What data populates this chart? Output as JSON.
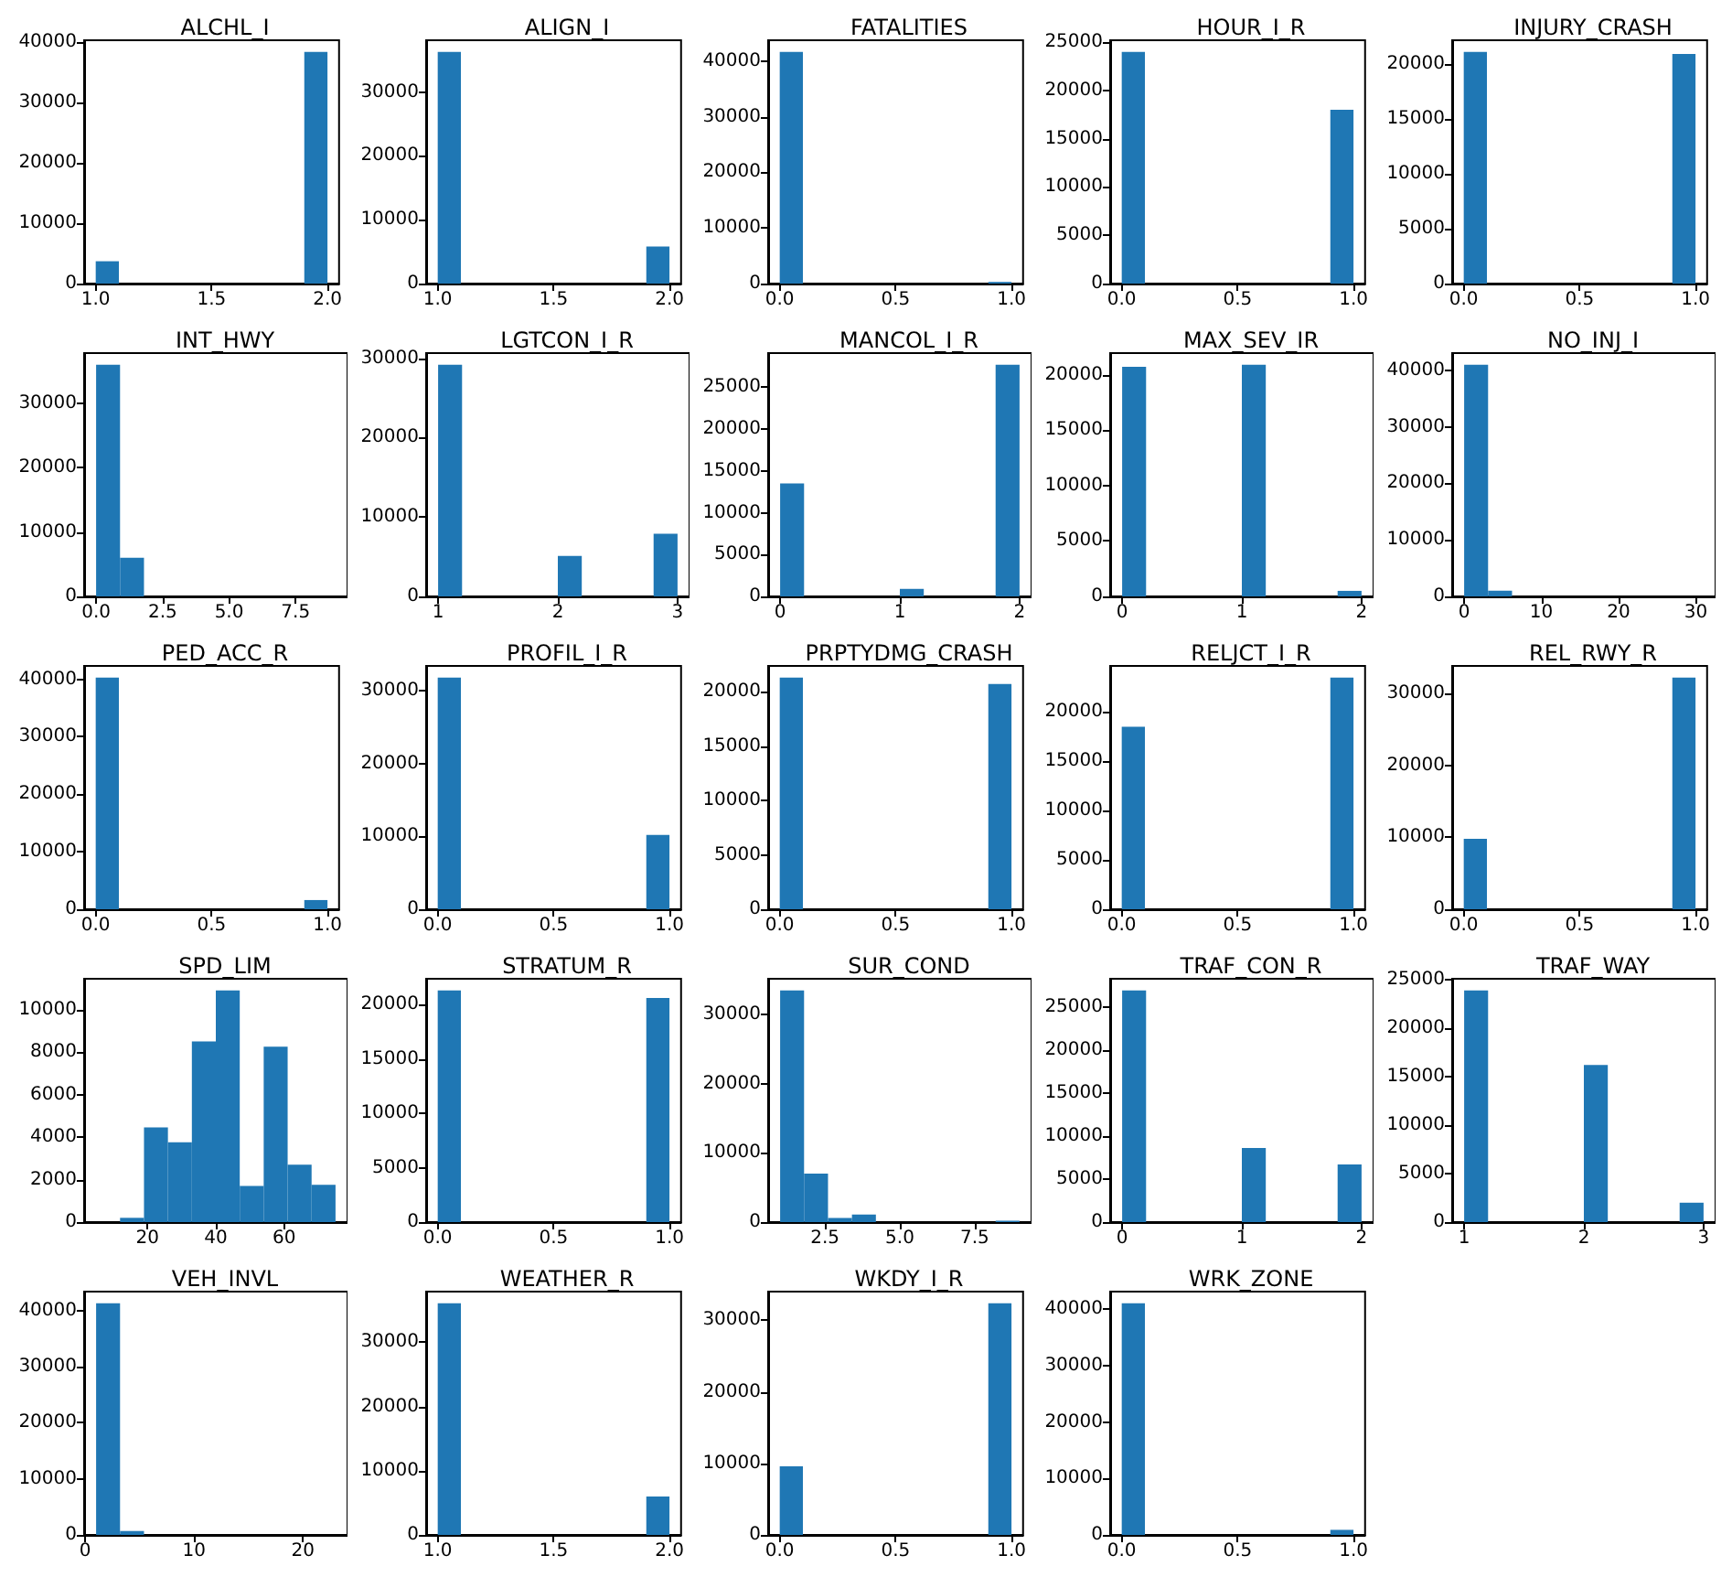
{
  "chart_data": [
    {
      "type": "histogram",
      "title": "ALCHL_I",
      "color": "#1f77b4",
      "bins": [
        1,
        1.1,
        1.2,
        1.3,
        1.4,
        1.5,
        1.6,
        1.7,
        1.8,
        1.9,
        2
      ],
      "values": [
        3700,
        0,
        0,
        0,
        0,
        0,
        0,
        0,
        0,
        38400
      ],
      "xlim": [
        0.95,
        2.05
      ],
      "xticks": [
        {
          "value": 1,
          "label": "1.0"
        },
        {
          "value": 1.5,
          "label": "1.5"
        },
        {
          "value": 2,
          "label": "2.0"
        }
      ],
      "ylim": [
        0,
        40320
      ],
      "yticks": [
        0,
        10000,
        20000,
        30000,
        40000
      ]
    },
    {
      "type": "histogram",
      "title": "ALIGN_I",
      "color": "#1f77b4",
      "bins": [
        1,
        1.1,
        1.2,
        1.3,
        1.4,
        1.5,
        1.6,
        1.7,
        1.8,
        1.9,
        2
      ],
      "values": [
        36300,
        0,
        0,
        0,
        0,
        0,
        0,
        0,
        0,
        5800
      ],
      "xlim": [
        0.95,
        2.05
      ],
      "xticks": [
        {
          "value": 1,
          "label": "1.0"
        },
        {
          "value": 1.5,
          "label": "1.5"
        },
        {
          "value": 2,
          "label": "2.0"
        }
      ],
      "ylim": [
        0,
        38115
      ],
      "yticks": [
        0,
        10000,
        20000,
        30000
      ]
    },
    {
      "type": "histogram",
      "title": "FATALITIES",
      "color": "#1f77b4",
      "bins": [
        0,
        0.1,
        0.2,
        0.3,
        0.4,
        0.5,
        0.6,
        0.7,
        0.8,
        0.9,
        1
      ],
      "values": [
        41700,
        0,
        0,
        0,
        0,
        0,
        0,
        0,
        0,
        300
      ],
      "xlim": [
        -0.05,
        1.05
      ],
      "xticks": [
        {
          "value": 0,
          "label": "0.0"
        },
        {
          "value": 0.5,
          "label": "0.5"
        },
        {
          "value": 1,
          "label": "1.0"
        }
      ],
      "ylim": [
        0,
        43785
      ],
      "yticks": [
        0,
        10000,
        20000,
        30000,
        40000
      ]
    },
    {
      "type": "histogram",
      "title": "HOUR_I_R",
      "color": "#1f77b4",
      "bins": [
        0,
        0.1,
        0.2,
        0.3,
        0.4,
        0.5,
        0.6,
        0.7,
        0.8,
        0.9,
        1
      ],
      "values": [
        24000,
        0,
        0,
        0,
        0,
        0,
        0,
        0,
        0,
        18000
      ],
      "xlim": [
        -0.05,
        1.05
      ],
      "xticks": [
        {
          "value": 0,
          "label": "0.0"
        },
        {
          "value": 0.5,
          "label": "0.5"
        },
        {
          "value": 1,
          "label": "1.0"
        }
      ],
      "ylim": [
        0,
        25200
      ],
      "yticks": [
        0,
        5000,
        10000,
        15000,
        20000,
        25000
      ]
    },
    {
      "type": "histogram",
      "title": "INJURY_CRASH",
      "color": "#1f77b4",
      "bins": [
        0,
        0.1,
        0.2,
        0.3,
        0.4,
        0.5,
        0.6,
        0.7,
        0.8,
        0.9,
        1
      ],
      "values": [
        21100,
        0,
        0,
        0,
        0,
        0,
        0,
        0,
        0,
        20900
      ],
      "xlim": [
        -0.05,
        1.05
      ],
      "xticks": [
        {
          "value": 0,
          "label": "0.0"
        },
        {
          "value": 0.5,
          "label": "0.5"
        },
        {
          "value": 1,
          "label": "1.0"
        }
      ],
      "ylim": [
        0,
        22155
      ],
      "yticks": [
        0,
        5000,
        10000,
        15000,
        20000
      ]
    },
    {
      "type": "histogram",
      "title": "INT_HWY",
      "color": "#1f77b4",
      "bins": [
        0,
        0.9,
        1.8,
        2.7,
        3.6,
        4.5,
        5.4,
        6.3,
        7.2,
        8.1,
        9
      ],
      "values": [
        36000,
        6000,
        0,
        0,
        0,
        0,
        0,
        0,
        0,
        0
      ],
      "xlim": [
        -0.45,
        9.45
      ],
      "xticks": [
        {
          "value": 0,
          "label": "0.0"
        },
        {
          "value": 2.5,
          "label": "2.5"
        },
        {
          "value": 5,
          "label": "5.0"
        },
        {
          "value": 7.5,
          "label": "7.5"
        }
      ],
      "ylim": [
        0,
        37800
      ],
      "yticks": [
        0,
        10000,
        20000,
        30000
      ]
    },
    {
      "type": "histogram",
      "title": "LGTCON_I_R",
      "color": "#1f77b4",
      "bins": [
        1,
        1.2,
        1.4,
        1.6,
        1.8,
        2,
        2.2,
        2.4,
        2.6,
        2.8,
        3
      ],
      "values": [
        29200,
        0,
        0,
        0,
        0,
        5100,
        0,
        0,
        0,
        7900
      ],
      "xlim": [
        0.9,
        3.1
      ],
      "xticks": [
        1,
        2,
        3
      ],
      "ylim": [
        0,
        30660
      ],
      "yticks": [
        0,
        10000,
        20000,
        30000
      ]
    },
    {
      "type": "histogram",
      "title": "MANCOL_I_R",
      "color": "#1f77b4",
      "bins": [
        0,
        0.2,
        0.4,
        0.6,
        0.8,
        1,
        1.2,
        1.4,
        1.6,
        1.8,
        2
      ],
      "values": [
        13500,
        0,
        0,
        0,
        0,
        900,
        0,
        0,
        0,
        27700
      ],
      "xlim": [
        -0.1,
        2.1
      ],
      "xticks": [
        0,
        1,
        2
      ],
      "ylim": [
        0,
        29085
      ],
      "yticks": [
        0,
        5000,
        10000,
        15000,
        20000,
        25000
      ]
    },
    {
      "type": "histogram",
      "title": "MAX_SEV_IR",
      "color": "#1f77b4",
      "bins": [
        0,
        0.2,
        0.4,
        0.6,
        0.8,
        1,
        1.2,
        1.4,
        1.6,
        1.8,
        2
      ],
      "values": [
        20700,
        0,
        0,
        0,
        0,
        20900,
        0,
        0,
        0,
        500
      ],
      "xlim": [
        -0.1,
        2.1
      ],
      "xticks": [
        0,
        1,
        2
      ],
      "ylim": [
        0,
        21945
      ],
      "yticks": [
        0,
        5000,
        10000,
        15000,
        20000
      ]
    },
    {
      "type": "histogram",
      "title": "NO_INJ_I",
      "color": "#1f77b4",
      "bins": [
        0,
        3.1,
        6.2,
        9.3,
        12.4,
        15.5,
        18.6,
        21.7,
        24.8,
        27.9,
        31
      ],
      "values": [
        41000,
        1000,
        0,
        0,
        0,
        0,
        0,
        0,
        0,
        0
      ],
      "xlim": [
        -1.55,
        32.55
      ],
      "xticks": [
        0,
        10,
        20,
        30
      ],
      "ylim": [
        0,
        43050
      ],
      "yticks": [
        0,
        10000,
        20000,
        30000,
        40000
      ]
    },
    {
      "type": "histogram",
      "title": "PED_ACC_R",
      "color": "#1f77b4",
      "bins": [
        0,
        0.1,
        0.2,
        0.3,
        0.4,
        0.5,
        0.6,
        0.7,
        0.8,
        0.9,
        1
      ],
      "values": [
        40300,
        0,
        0,
        0,
        0,
        0,
        0,
        0,
        0,
        1600
      ],
      "xlim": [
        -0.05,
        1.05
      ],
      "xticks": [
        {
          "value": 0,
          "label": "0.0"
        },
        {
          "value": 0.5,
          "label": "0.5"
        },
        {
          "value": 1,
          "label": "1.0"
        }
      ],
      "ylim": [
        0,
        42315
      ],
      "yticks": [
        0,
        10000,
        20000,
        30000,
        40000
      ]
    },
    {
      "type": "histogram",
      "title": "PROFIL_I_R",
      "color": "#1f77b4",
      "bins": [
        0,
        0.1,
        0.2,
        0.3,
        0.4,
        0.5,
        0.6,
        0.7,
        0.8,
        0.9,
        1
      ],
      "values": [
        31800,
        0,
        0,
        0,
        0,
        0,
        0,
        0,
        0,
        10200
      ],
      "xlim": [
        -0.05,
        1.05
      ],
      "xticks": [
        {
          "value": 0,
          "label": "0.0"
        },
        {
          "value": 0.5,
          "label": "0.5"
        },
        {
          "value": 1,
          "label": "1.0"
        }
      ],
      "ylim": [
        0,
        33390
      ],
      "yticks": [
        0,
        10000,
        20000,
        30000
      ]
    },
    {
      "type": "histogram",
      "title": "PRPTYDMG_CRASH",
      "color": "#1f77b4",
      "bins": [
        0,
        0.1,
        0.2,
        0.3,
        0.4,
        0.5,
        0.6,
        0.7,
        0.8,
        0.9,
        1
      ],
      "values": [
        21300,
        0,
        0,
        0,
        0,
        0,
        0,
        0,
        0,
        20700
      ],
      "xlim": [
        -0.05,
        1.05
      ],
      "xticks": [
        {
          "value": 0,
          "label": "0.0"
        },
        {
          "value": 0.5,
          "label": "0.5"
        },
        {
          "value": 1,
          "label": "1.0"
        }
      ],
      "ylim": [
        0,
        22365
      ],
      "yticks": [
        0,
        5000,
        10000,
        15000,
        20000
      ]
    },
    {
      "type": "histogram",
      "title": "RELJCT_I_R",
      "color": "#1f77b4",
      "bins": [
        0,
        0.1,
        0.2,
        0.3,
        0.4,
        0.5,
        0.6,
        0.7,
        0.8,
        0.9,
        1
      ],
      "values": [
        18500,
        0,
        0,
        0,
        0,
        0,
        0,
        0,
        0,
        23500
      ],
      "xlim": [
        -0.05,
        1.05
      ],
      "xticks": [
        {
          "value": 0,
          "label": "0.0"
        },
        {
          "value": 0.5,
          "label": "0.5"
        },
        {
          "value": 1,
          "label": "1.0"
        }
      ],
      "ylim": [
        0,
        24675
      ],
      "yticks": [
        0,
        5000,
        10000,
        15000,
        20000
      ]
    },
    {
      "type": "histogram",
      "title": "REL_RWY_R",
      "color": "#1f77b4",
      "bins": [
        0,
        0.1,
        0.2,
        0.3,
        0.4,
        0.5,
        0.6,
        0.7,
        0.8,
        0.9,
        1
      ],
      "values": [
        9800,
        0,
        0,
        0,
        0,
        0,
        0,
        0,
        0,
        32200
      ],
      "xlim": [
        -0.05,
        1.05
      ],
      "xticks": [
        {
          "value": 0,
          "label": "0.0"
        },
        {
          "value": 0.5,
          "label": "0.5"
        },
        {
          "value": 1,
          "label": "1.0"
        }
      ],
      "ylim": [
        0,
        33810
      ],
      "yticks": [
        0,
        10000,
        20000,
        30000
      ]
    },
    {
      "type": "histogram",
      "title": "SPD_LIM",
      "color": "#1f77b4",
      "bins": [
        5,
        12,
        19,
        26,
        33,
        40,
        47,
        54,
        61,
        68,
        75
      ],
      "values": [
        0,
        200,
        4450,
        3750,
        8500,
        10900,
        1700,
        8250,
        2700,
        1750
      ],
      "xlim": [
        1.5,
        78.5
      ],
      "xticks": [
        20,
        40,
        60
      ],
      "ylim": [
        0,
        11445
      ],
      "yticks": [
        0,
        2000,
        4000,
        6000,
        8000,
        10000
      ]
    },
    {
      "type": "histogram",
      "title": "STRATUM_R",
      "color": "#1f77b4",
      "bins": [
        0,
        0.1,
        0.2,
        0.3,
        0.4,
        0.5,
        0.6,
        0.7,
        0.8,
        0.9,
        1
      ],
      "values": [
        21300,
        0,
        0,
        0,
        0,
        0,
        0,
        0,
        0,
        20600
      ],
      "xlim": [
        -0.05,
        1.05
      ],
      "xticks": [
        {
          "value": 0,
          "label": "0.0"
        },
        {
          "value": 0.5,
          "label": "0.5"
        },
        {
          "value": 1,
          "label": "1.0"
        }
      ],
      "ylim": [
        0,
        22365
      ],
      "yticks": [
        0,
        5000,
        10000,
        15000,
        20000
      ]
    },
    {
      "type": "histogram",
      "title": "SUR_COND",
      "color": "#1f77b4",
      "bins": [
        1,
        1.8,
        2.6,
        3.4,
        4.2,
        5,
        5.8,
        6.6,
        7.4,
        8.2,
        9
      ],
      "values": [
        33500,
        7000,
        600,
        1100,
        0,
        0,
        0,
        0,
        0,
        200
      ],
      "xlim": [
        0.6,
        9.4
      ],
      "xticks": [
        {
          "value": 2.5,
          "label": "2.5"
        },
        {
          "value": 5,
          "label": "5.0"
        },
        {
          "value": 7.5,
          "label": "7.5"
        }
      ],
      "ylim": [
        0,
        35175
      ],
      "yticks": [
        0,
        10000,
        20000,
        30000
      ]
    },
    {
      "type": "histogram",
      "title": "TRAF_CON_R",
      "color": "#1f77b4",
      "bins": [
        0,
        0.2,
        0.4,
        0.6,
        0.8,
        1,
        1.2,
        1.4,
        1.6,
        1.8,
        2
      ],
      "values": [
        26900,
        0,
        0,
        0,
        0,
        8600,
        0,
        0,
        0,
        6700
      ],
      "xlim": [
        -0.1,
        2.1
      ],
      "xticks": [
        0,
        1,
        2
      ],
      "ylim": [
        0,
        28245
      ],
      "yticks": [
        0,
        5000,
        10000,
        15000,
        20000,
        25000
      ]
    },
    {
      "type": "histogram",
      "title": "TRAF_WAY",
      "color": "#1f77b4",
      "bins": [
        1,
        1.2,
        1.4,
        1.6,
        1.8,
        2,
        2.2,
        2.4,
        2.6,
        2.8,
        3
      ],
      "values": [
        23900,
        0,
        0,
        0,
        0,
        16200,
        0,
        0,
        0,
        2000
      ],
      "xlim": [
        0.9,
        3.1
      ],
      "xticks": [
        1,
        2,
        3
      ],
      "ylim": [
        0,
        25095
      ],
      "yticks": [
        0,
        5000,
        10000,
        15000,
        20000,
        25000
      ]
    },
    {
      "type": "histogram",
      "title": "VEH_INVL",
      "color": "#1f77b4",
      "bins": [
        1,
        3.2,
        5.4,
        7.6,
        9.8,
        12,
        14.2,
        16.4,
        18.6,
        20.8,
        23
      ],
      "values": [
        41300,
        700,
        0,
        0,
        0,
        0,
        0,
        0,
        0,
        0
      ],
      "xlim": [
        -0.1,
        24.1
      ],
      "xticks": [
        0,
        10,
        20
      ],
      "ylim": [
        0,
        43365
      ],
      "yticks": [
        0,
        10000,
        20000,
        30000,
        40000
      ]
    },
    {
      "type": "histogram",
      "title": "WEATHER_R",
      "color": "#1f77b4",
      "bins": [
        1,
        1.1,
        1.2,
        1.3,
        1.4,
        1.5,
        1.6,
        1.7,
        1.8,
        1.9,
        2
      ],
      "values": [
        36100,
        0,
        0,
        0,
        0,
        0,
        0,
        0,
        0,
        6000
      ],
      "xlim": [
        0.95,
        2.05
      ],
      "xticks": [
        {
          "value": 1,
          "label": "1.0"
        },
        {
          "value": 1.5,
          "label": "1.5"
        },
        {
          "value": 2,
          "label": "2.0"
        }
      ],
      "ylim": [
        0,
        37905
      ],
      "yticks": [
        0,
        10000,
        20000,
        30000
      ]
    },
    {
      "type": "histogram",
      "title": "WKDY_I_R",
      "color": "#1f77b4",
      "bins": [
        0,
        0.1,
        0.2,
        0.3,
        0.4,
        0.5,
        0.6,
        0.7,
        0.8,
        0.9,
        1
      ],
      "values": [
        9600,
        0,
        0,
        0,
        0,
        0,
        0,
        0,
        0,
        32400
      ],
      "xlim": [
        -0.05,
        1.05
      ],
      "xticks": [
        {
          "value": 0,
          "label": "0.0"
        },
        {
          "value": 0.5,
          "label": "0.5"
        },
        {
          "value": 1,
          "label": "1.0"
        }
      ],
      "ylim": [
        0,
        34020
      ],
      "yticks": [
        0,
        10000,
        20000,
        30000
      ]
    },
    {
      "type": "histogram",
      "title": "WRK_ZONE",
      "color": "#1f77b4",
      "bins": [
        0,
        0.1,
        0.2,
        0.3,
        0.4,
        0.5,
        0.6,
        0.7,
        0.8,
        0.9,
        1
      ],
      "values": [
        41100,
        0,
        0,
        0,
        0,
        0,
        0,
        0,
        0,
        900
      ],
      "xlim": [
        -0.05,
        1.05
      ],
      "xticks": [
        {
          "value": 0,
          "label": "0.0"
        },
        {
          "value": 0.5,
          "label": "0.5"
        },
        {
          "value": 1,
          "label": "1.0"
        }
      ],
      "ylim": [
        0,
        43155
      ],
      "yticks": [
        0,
        10000,
        20000,
        30000,
        40000
      ]
    }
  ]
}
